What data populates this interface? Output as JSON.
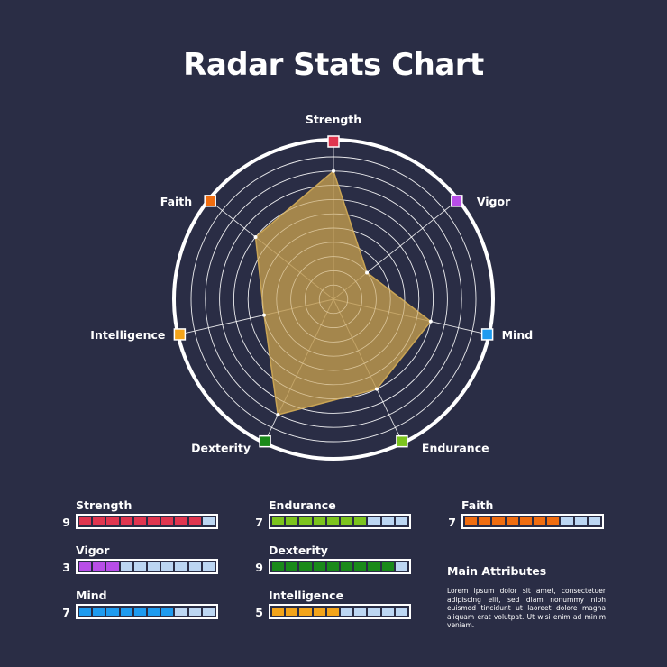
{
  "title": "Radar Stats Chart",
  "chart_data": {
    "type": "radar",
    "axes": [
      "Strength",
      "Vigor",
      "Mind",
      "Endurance",
      "Dexterity",
      "Intelligence",
      "Faith"
    ],
    "values": [
      9,
      3,
      7,
      7,
      9,
      5,
      7
    ],
    "max": 10,
    "rings": 10,
    "colors": {
      "Strength": "#e0364f",
      "Vigor": "#b84ee8",
      "Mind": "#1e9bef",
      "Endurance": "#7cc41e",
      "Dexterity": "#1a8a1a",
      "Intelligence": "#f3a41a",
      "Faith": "#f06d10"
    },
    "fill_color": "#bf9a4e"
  },
  "stats": [
    {
      "name": "Strength",
      "value": "9",
      "color": "#e0364f",
      "filled": 9
    },
    {
      "name": "Vigor",
      "value": "3",
      "color": "#b84ee8",
      "filled": 3
    },
    {
      "name": "Mind",
      "value": "7",
      "color": "#1e9bef",
      "filled": 7
    },
    {
      "name": "Endurance",
      "value": "7",
      "color": "#7cc41e",
      "filled": 7
    },
    {
      "name": "Dexterity",
      "value": "9",
      "color": "#1a8a1a",
      "filled": 9
    },
    {
      "name": "Intelligence",
      "value": "5",
      "color": "#f3a41a",
      "filled": 5
    },
    {
      "name": "Faith",
      "value": "7",
      "color": "#f06d10",
      "filled": 7
    }
  ],
  "main_attributes": {
    "heading": "Main Attributes",
    "body": "Lorem ipsum dolor sit amet, consectetuer adipiscing elit, sed diam nonummy nibh euismod tincidunt ut laoreet dolore magna aliquam erat volutpat. Ut wisi enim ad minim veniam."
  }
}
